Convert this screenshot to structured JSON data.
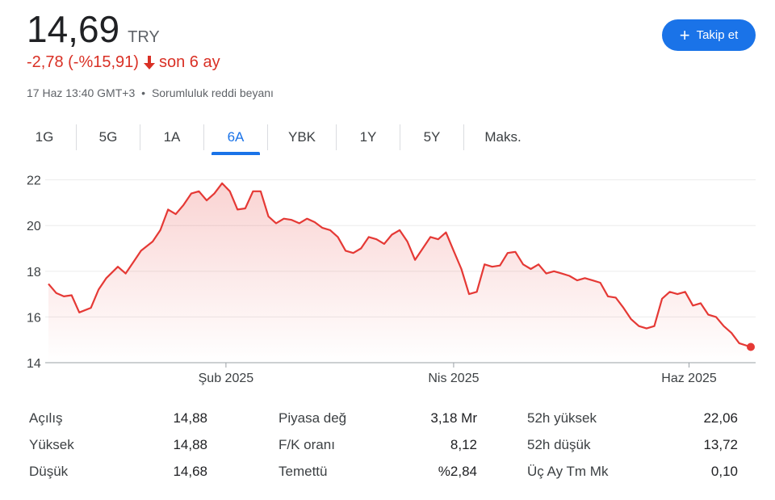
{
  "quote": {
    "price": "14,69",
    "currency": "TRY",
    "change": "-2,78 (-%15,91)",
    "period": "son 6 ay",
    "timestamp": "17 Haz 13:40 GMT+3",
    "separator": "•",
    "disclaimer": "Sorumluluk reddi beyanı"
  },
  "follow_button": {
    "label": "Takip et"
  },
  "tabs": [
    {
      "label": "1G"
    },
    {
      "label": "5G"
    },
    {
      "label": "1A"
    },
    {
      "label": "6A"
    },
    {
      "label": "YBK"
    },
    {
      "label": "1Y"
    },
    {
      "label": "5Y"
    },
    {
      "label": "Maks."
    }
  ],
  "active_tab": "6A",
  "colors": {
    "accent": "#1a73e8",
    "negative": "#d93025",
    "line": "#e53935",
    "grid": "#ebebeb"
  },
  "chart_data": {
    "type": "area",
    "title": "",
    "xlabel": "",
    "ylabel": "",
    "ylim": [
      14,
      22.8
    ],
    "xlim": [
      "2024-12-17",
      "2025-06-17"
    ],
    "y_ticks": [
      22,
      20,
      18,
      16,
      14
    ],
    "x_ticks": [
      {
        "date": "2025-02-01",
        "label": "Şub 2025"
      },
      {
        "date": "2025-04-01",
        "label": "Nis 2025"
      },
      {
        "date": "2025-06-01",
        "label": "Haz 2025"
      }
    ],
    "grid": true,
    "legend": "none",
    "series": [
      {
        "x": [
          "2024-12-17",
          "2024-12-19",
          "2024-12-21",
          "2024-12-23",
          "2024-12-25",
          "2024-12-28",
          "2024-12-30",
          "2025-01-01",
          "2025-01-04",
          "2025-01-06",
          "2025-01-08",
          "2025-01-10",
          "2025-01-13",
          "2025-01-15",
          "2025-01-17",
          "2025-01-19",
          "2025-01-21",
          "2025-01-23",
          "2025-01-25",
          "2025-01-27",
          "2025-01-29",
          "2025-01-31",
          "2025-02-02",
          "2025-02-04",
          "2025-02-06",
          "2025-02-08",
          "2025-02-10",
          "2025-02-12",
          "2025-02-14",
          "2025-02-16",
          "2025-02-18",
          "2025-02-20",
          "2025-02-22",
          "2025-02-24",
          "2025-02-26",
          "2025-02-28",
          "2025-03-02",
          "2025-03-04",
          "2025-03-06",
          "2025-03-08",
          "2025-03-10",
          "2025-03-12",
          "2025-03-14",
          "2025-03-16",
          "2025-03-18",
          "2025-03-20",
          "2025-03-22",
          "2025-03-24",
          "2025-03-26",
          "2025-03-28",
          "2025-03-30",
          "2025-04-01",
          "2025-04-03",
          "2025-04-05",
          "2025-04-07",
          "2025-04-09",
          "2025-04-11",
          "2025-04-13",
          "2025-04-15",
          "2025-04-17",
          "2025-04-19",
          "2025-04-21",
          "2025-04-23",
          "2025-04-25",
          "2025-04-27",
          "2025-04-29",
          "2025-05-01",
          "2025-05-03",
          "2025-05-05",
          "2025-05-07",
          "2025-05-09",
          "2025-05-11",
          "2025-05-13",
          "2025-05-15",
          "2025-05-17",
          "2025-05-19",
          "2025-05-21",
          "2025-05-23",
          "2025-05-25",
          "2025-05-27",
          "2025-05-29",
          "2025-05-31",
          "2025-06-02",
          "2025-06-04",
          "2025-06-06",
          "2025-06-08",
          "2025-06-10",
          "2025-06-12",
          "2025-06-14",
          "2025-06-17"
        ],
        "y": [
          17.45,
          17.05,
          16.9,
          16.95,
          16.2,
          16.4,
          17.2,
          17.7,
          18.2,
          17.9,
          18.4,
          18.9,
          19.3,
          19.8,
          20.7,
          20.5,
          20.9,
          21.4,
          21.5,
          21.1,
          21.4,
          21.85,
          21.5,
          20.7,
          20.75,
          21.5,
          21.5,
          20.4,
          20.1,
          20.3,
          20.25,
          20.1,
          20.3,
          20.15,
          19.9,
          19.8,
          19.5,
          18.9,
          18.8,
          19.0,
          19.5,
          19.4,
          19.2,
          19.6,
          19.8,
          19.3,
          18.5,
          19.0,
          19.5,
          19.4,
          19.7,
          18.9,
          18.1,
          17.0,
          17.1,
          18.3,
          18.2,
          18.25,
          18.8,
          18.85,
          18.3,
          18.1,
          18.3,
          17.9,
          18.0,
          17.9,
          17.8,
          17.6,
          17.7,
          17.6,
          17.5,
          16.9,
          16.85,
          16.4,
          15.9,
          15.6,
          15.5,
          15.6,
          16.8,
          17.1,
          17.0,
          17.1,
          16.5,
          16.6,
          16.1,
          16.0,
          15.6,
          15.3,
          14.85,
          14.69
        ],
        "last_value": 14.69
      }
    ]
  },
  "stats": {
    "col1": [
      {
        "label": "Açılış",
        "value": "14,88"
      },
      {
        "label": "Yüksek",
        "value": "14,88"
      },
      {
        "label": "Düşük",
        "value": "14,68"
      }
    ],
    "col2": [
      {
        "label": "Piyasa değ",
        "value": "3,18 Mr"
      },
      {
        "label": "F/K oranı",
        "value": "8,12"
      },
      {
        "label": "Temettü",
        "value": "%2,84"
      }
    ],
    "col3": [
      {
        "label": "52h yüksek",
        "value": "22,06"
      },
      {
        "label": "52h düşük",
        "value": "13,72"
      },
      {
        "label": "Üç Ay Tm Mk",
        "value": "0,10"
      }
    ]
  }
}
